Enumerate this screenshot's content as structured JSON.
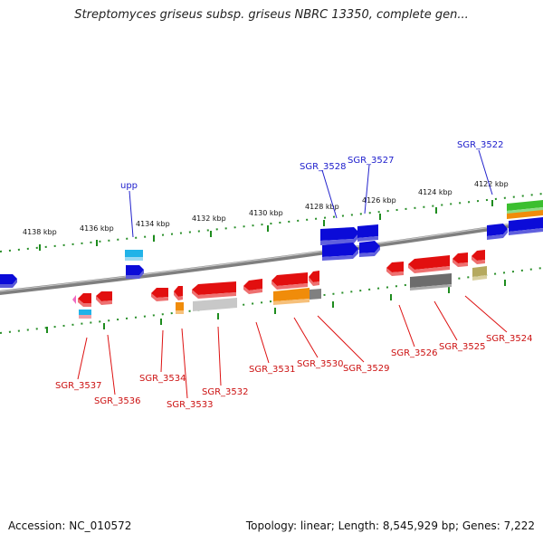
{
  "title": "Streptomyces griseus subsp. griseus NBRC 13350, complete gen...",
  "footer": {
    "accession": "Accession: NC_010572",
    "summary": "Topology: linear; Length: 8,545,929 bp; Genes: 7,222"
  },
  "scale_labels": [
    "4138 kbp",
    "4136 kbp",
    "4134 kbp",
    "4132 kbp",
    "4130 kbp",
    "4128 kbp",
    "4126 kbp",
    "4124 kbp",
    "4122 kbp"
  ],
  "top_gene_labels": [
    "upp",
    "SGR_3528",
    "SGR_3527",
    "SGR_3522"
  ],
  "bottom_gene_labels": [
    "SGR_3537",
    "SGR_3536",
    "SGR_3534",
    "SGR_3533",
    "SGR_3532",
    "SGR_3531",
    "SGR_3530",
    "SGR_3529",
    "SGR_3526",
    "SGR_3525",
    "SGR_3524"
  ],
  "colors": {
    "label_top": "#1c1ccc",
    "label_bottom": "#cc1111",
    "gene_blue": "#0b0bd8",
    "gene_red": "#e20f0f",
    "gene_orange": "#f08c0a",
    "gene_gray": "#808080",
    "gene_cyan": "#21b3e8",
    "gene_green": "#3bbf2f",
    "gene_olive": "#bdb26a",
    "tick": "#1e8c1e",
    "backbone": "#8a8a8a"
  }
}
